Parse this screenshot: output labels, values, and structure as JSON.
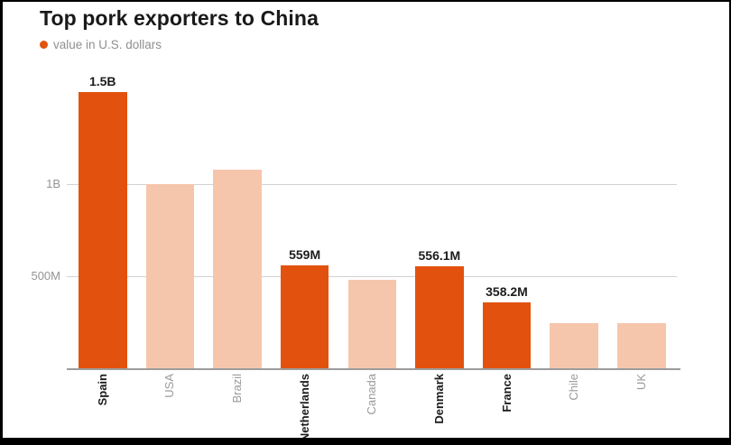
{
  "header": {
    "title": "Top pork exporters to China"
  },
  "legend": {
    "label": "value in U.S. dollars",
    "dot_color": "#E2520E"
  },
  "chart_data": {
    "type": "bar",
    "title": "Top pork exporters to China",
    "legend_entries": [
      "value in U.S. dollars"
    ],
    "legend_position": "top-left",
    "unit": "U.S. dollars",
    "categories": [
      "Spain",
      "USA",
      "Brazil",
      "Netherlands",
      "Canada",
      "Denmark",
      "France",
      "Chile",
      "UK"
    ],
    "values_million_usd": [
      1500,
      1000,
      1080,
      559,
      480,
      556.1,
      358.2,
      245,
      245
    ],
    "value_labels": [
      "1.5B",
      "",
      "",
      "559M",
      "",
      "556.1M",
      "358.2M",
      "",
      ""
    ],
    "highlighted": [
      true,
      false,
      false,
      true,
      false,
      true,
      true,
      false,
      false
    ],
    "y_ticks": [
      {
        "label": "1B",
        "value": 1000
      },
      {
        "label": "500M",
        "value": 500
      }
    ],
    "ylim": [
      0,
      1560
    ],
    "grid": "horizontal",
    "xlabel": "",
    "ylabel": "",
    "colors": {
      "highlight": "#E2520E",
      "muted": "#F6C6AC"
    }
  }
}
